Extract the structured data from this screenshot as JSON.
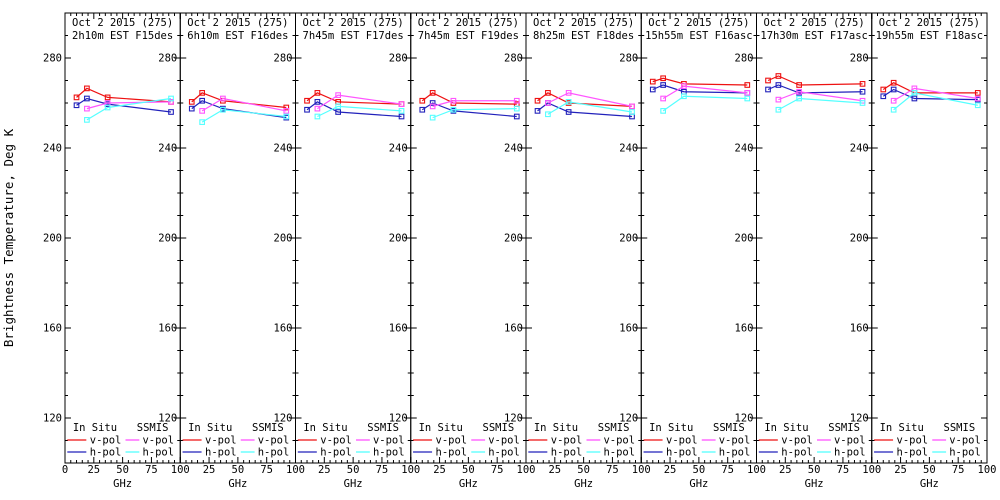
{
  "figure": {
    "background": "#ffffff"
  },
  "chart_data": {
    "type": "line",
    "ylabel": "Brightness Temperature, Deg K",
    "xlabel": "GHz",
    "ylim": [
      100,
      300
    ],
    "xlim": [
      0,
      100
    ],
    "yticks": [
      120,
      160,
      200,
      240,
      280
    ],
    "xticks": [
      0,
      25,
      50,
      75,
      100
    ],
    "grid": false,
    "legend_position": "bottom-inside-each-panel",
    "colors": {
      "in_situ_v": "#ee1111",
      "in_situ_h": "#2222bb",
      "ssmis_v": "#ff55ff",
      "ssmis_h": "#55ffff",
      "axis": "#000000"
    },
    "legend": {
      "groups": [
        {
          "label": "In Situ",
          "entries": [
            {
              "label": "v-pol",
              "color_key": "in_situ_v"
            },
            {
              "label": "h-pol",
              "color_key": "in_situ_h"
            }
          ]
        },
        {
          "label": "SSMIS",
          "entries": [
            {
              "label": "v-pol",
              "color_key": "ssmis_v"
            },
            {
              "label": "h-pol",
              "color_key": "ssmis_h"
            }
          ]
        }
      ]
    },
    "in_situ_x": [
      10,
      19,
      37,
      92
    ],
    "ssmis_x": [
      19,
      37,
      92
    ],
    "panels": [
      {
        "title_line1": "Oct 2 2015 (275)",
        "title_line2": "2h10m EST F15des",
        "series": {
          "in_situ_v": [
            262.5,
            266.5,
            262.5,
            260.5
          ],
          "in_situ_h": [
            259.0,
            262.0,
            259.5,
            256.0
          ],
          "ssmis_v": [
            257.5,
            260.0,
            260.5
          ],
          "ssmis_h": [
            252.5,
            258.0,
            262.0
          ]
        }
      },
      {
        "title_line1": "Oct 2 2015 (275)",
        "title_line2": "6h10m EST F16des",
        "series": {
          "in_situ_v": [
            260.5,
            264.5,
            261.0,
            258.0
          ],
          "in_situ_h": [
            257.5,
            261.0,
            257.5,
            253.5
          ],
          "ssmis_v": [
            256.5,
            262.0,
            256.5
          ],
          "ssmis_h": [
            251.5,
            257.0,
            254.0
          ]
        }
      },
      {
        "title_line1": "Oct 2 2015 (275)",
        "title_line2": "7h45m EST F17des",
        "series": {
          "in_situ_v": [
            261.0,
            264.5,
            260.5,
            259.5
          ],
          "in_situ_h": [
            257.0,
            260.5,
            256.0,
            254.0
          ],
          "ssmis_v": [
            257.5,
            263.5,
            259.5
          ],
          "ssmis_h": [
            254.0,
            258.5,
            256.5
          ]
        }
      },
      {
        "title_line1": "Oct 2 2015 (275)",
        "title_line2": "7h45m EST F19des",
        "series": {
          "in_situ_v": [
            261.0,
            264.5,
            260.0,
            259.5
          ],
          "in_situ_h": [
            257.0,
            260.0,
            256.5,
            254.0
          ],
          "ssmis_v": [
            258.5,
            261.0,
            261.0
          ],
          "ssmis_h": [
            253.5,
            257.0,
            257.5
          ]
        }
      },
      {
        "title_line1": "Oct 2 2015 (275)",
        "title_line2": "8h25m EST F18des",
        "series": {
          "in_situ_v": [
            261.0,
            264.5,
            260.0,
            258.5
          ],
          "in_situ_h": [
            256.5,
            260.0,
            256.0,
            254.0
          ],
          "ssmis_v": [
            260.0,
            264.5,
            258.5
          ],
          "ssmis_h": [
            255.0,
            260.5,
            256.0
          ]
        }
      },
      {
        "title_line1": "Oct 2 2015 (275)",
        "title_line2": "15h55m EST F16asc",
        "series": {
          "in_situ_v": [
            269.5,
            271.0,
            268.5,
            268.0
          ],
          "in_situ_h": [
            266.0,
            268.0,
            265.0,
            264.5
          ],
          "ssmis_v": [
            262.0,
            267.5,
            264.5
          ],
          "ssmis_h": [
            256.5,
            263.0,
            262.0
          ]
        }
      },
      {
        "title_line1": "Oct 2 2015 (275)",
        "title_line2": "17h30m EST F17asc",
        "series": {
          "in_situ_v": [
            270.0,
            272.0,
            268.0,
            268.5
          ],
          "in_situ_h": [
            266.0,
            268.0,
            264.5,
            265.0
          ],
          "ssmis_v": [
            261.5,
            265.0,
            261.0
          ],
          "ssmis_h": [
            257.0,
            262.0,
            260.0
          ]
        }
      },
      {
        "title_line1": "Oct 2 2015 (275)",
        "title_line2": "19h55m EST F18asc",
        "series": {
          "in_situ_v": [
            266.0,
            269.0,
            264.5,
            264.5
          ],
          "in_situ_h": [
            263.0,
            266.0,
            262.0,
            261.5
          ],
          "ssmis_v": [
            261.0,
            266.5,
            262.0
          ],
          "ssmis_h": [
            257.0,
            264.5,
            259.0
          ]
        }
      }
    ]
  }
}
